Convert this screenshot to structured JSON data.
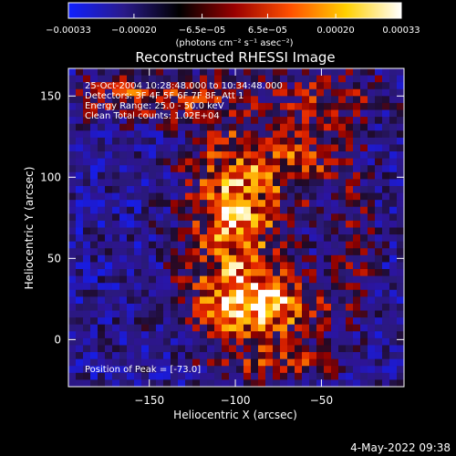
{
  "chart_data": {
    "type": "heatmap",
    "title": "Reconstructed RHESSI Image",
    "xlabel": "Heliocentric X (arcsec)",
    "ylabel": "Heliocentric Y (arcsec)",
    "xlim": [
      -197,
      -2
    ],
    "ylim": [
      -29,
      167
    ],
    "x_ticks": [
      -150,
      -100,
      -50
    ],
    "x_tick_labels": [
      "−150",
      "−100",
      "−50"
    ],
    "y_ticks": [
      0,
      50,
      100,
      150
    ],
    "y_tick_labels": [
      "0",
      "50",
      "100",
      "150"
    ],
    "colorbar": {
      "min": -0.00033,
      "max": 0.00033,
      "ticks": [
        -0.00033,
        -0.0002,
        -6.5e-05,
        6.5e-05,
        0.0002,
        0.00033
      ],
      "tick_labels": [
        "−0.00033",
        "−0.00020",
        "−6.5e−05",
        "6.5e−05",
        "0.00020",
        "0.00033"
      ],
      "unit_label": "(photons cm⁻² s⁻¹ asec⁻²)",
      "colors": [
        "#1020ff",
        "#2a1a8a",
        "#000000",
        "#9a0000",
        "#ff5000",
        "#ffd000",
        "#ffffff"
      ]
    },
    "annotations": [
      "25-Oct-2004 10:28:48.000 to 10:34:48.000",
      "Detectors: 3F 4F 5F 6F 7F 8F, Att 1",
      "Energy Range: 25.0 - 50.0 keV",
      "Clean     Total counts: 1.02E+04"
    ],
    "peak_label": "Position of Peak = [-73.0]",
    "grid": false,
    "legend": "colorbar-top"
  },
  "footer": {
    "date": "4-May-2022 09:38"
  }
}
